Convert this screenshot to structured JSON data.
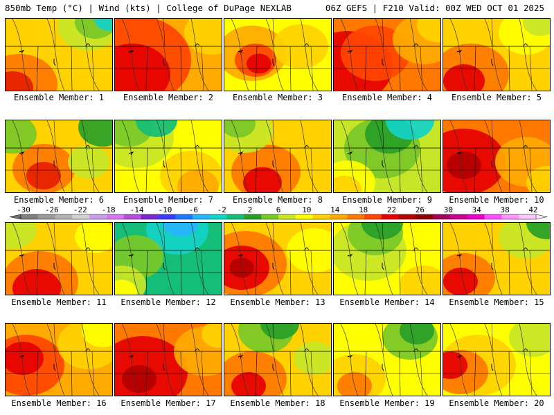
{
  "header": {
    "left": "850mb Temp (°C) | Wind (kts) | College of DuPage NEXLAB",
    "right": "06Z GEFS | F210 Valid: 00Z WED OCT 01 2025"
  },
  "colorbar": {
    "labels": [
      "-30",
      "-26",
      "-22",
      "-18",
      "-14",
      "-10",
      "-6",
      "-2",
      "2",
      "6",
      "10",
      "14",
      "18",
      "22",
      "26",
      "30",
      "34",
      "38",
      "42"
    ],
    "colors": [
      "#808080",
      "#9a9a9a",
      "#b4b4b4",
      "#d2d2d2",
      "#c8a0e6",
      "#d878f0",
      "#b450dc",
      "#7a28c8",
      "#3c3cff",
      "#1e78ff",
      "#28b4ff",
      "#14d2c8",
      "#14be78",
      "#28a028",
      "#78c828",
      "#c8e628",
      "#ffff00",
      "#ffd200",
      "#ffaa00",
      "#ff7800",
      "#ff4600",
      "#e60000",
      "#b40000",
      "#8c0000",
      "#a0005a",
      "#c8008c",
      "#e600c8",
      "#ff50ff",
      "#ff96ff",
      "#ffc8ff"
    ]
  },
  "panels": [
    {
      "label": "Ensemble Member: 1"
    },
    {
      "label": "Ensemble Member: 2"
    },
    {
      "label": "Ensemble Member: 3"
    },
    {
      "label": "Ensemble Member: 4"
    },
    {
      "label": "Ensemble Member: 5"
    },
    {
      "label": "Ensemble Member: 6"
    },
    {
      "label": "Ensemble Member: 7"
    },
    {
      "label": "Ensemble Member: 8"
    },
    {
      "label": "Ensemble Member: 9"
    },
    {
      "label": "Ensemble Member: 10"
    },
    {
      "label": "Ensemble Member: 11"
    },
    {
      "label": "Ensemble Member: 12"
    },
    {
      "label": "Ensemble Member: 13"
    },
    {
      "label": "Ensemble Member: 14"
    },
    {
      "label": "Ensemble Member: 15"
    },
    {
      "label": "Ensemble Member: 16"
    },
    {
      "label": "Ensemble Member: 17"
    },
    {
      "label": "Ensemble Member: 18"
    },
    {
      "label": "Ensemble Member: 19"
    },
    {
      "label": "Ensemble Member: 20"
    }
  ]
}
